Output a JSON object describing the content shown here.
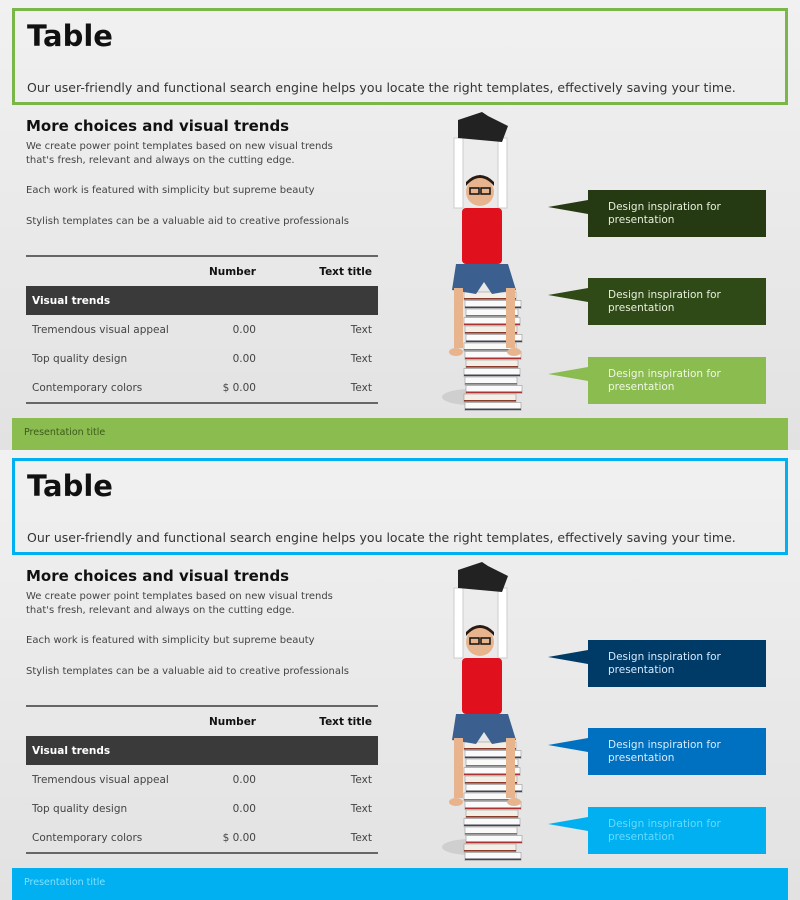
{
  "slides": [
    {
      "theme": "green",
      "colors": {
        "accent": "#8bbc4f",
        "border": "#7ab648",
        "footer_text": "#3d5a1c",
        "callouts": [
          "#253a12",
          "#2f4a17",
          "#8bbc4f"
        ],
        "callout_text": [
          "#e8f0dc",
          "#e8f0dc",
          "#f0f7e6"
        ]
      },
      "title": "Table",
      "subtitle": "Our user-friendly and functional search engine helps you locate the right templates, effectively saving your time.",
      "heading": "More choices and visual trends",
      "paragraphs": [
        "We create power point templates based on new visual trends that's fresh, relevant and always on the cutting edge.",
        "Each work is featured with simplicity but supreme beauty",
        "Stylish templates can be a valuable aid to creative professionals"
      ],
      "table": {
        "headers": [
          "",
          "Number",
          "Text title"
        ],
        "group": "Visual trends",
        "rows": [
          [
            "Tremendous visual appeal",
            "0.00",
            "Text"
          ],
          [
            "Top quality design",
            "0.00",
            "Text"
          ],
          [
            "Contemporary colors",
            "$ 0.00",
            "Text"
          ]
        ]
      },
      "callouts": [
        "Design inspiration for presentation",
        "Design inspiration for presentation",
        "Design inspiration for presentation"
      ],
      "footer": "Presentation title"
    },
    {
      "theme": "blue",
      "colors": {
        "accent": "#00b0f0",
        "border": "#00b0f0",
        "footer_text": "#7fe0ff",
        "callouts": [
          "#003a66",
          "#0070c0",
          "#00b0f0"
        ],
        "callout_text": [
          "#d6ecff",
          "#d6ecff",
          "#66d9ff"
        ]
      },
      "title": "Table",
      "subtitle": "Our user-friendly and functional search engine helps you locate the right templates, effectively saving your time.",
      "heading": "More choices and visual trends",
      "paragraphs": [
        "We create power point templates based on new visual trends that's fresh, relevant and always on the cutting edge.",
        "Each work is featured with simplicity but supreme beauty",
        "Stylish templates can be a valuable aid to creative professionals"
      ],
      "table": {
        "headers": [
          "",
          "Number",
          "Text title"
        ],
        "group": "Visual trends",
        "rows": [
          [
            "Tremendous visual appeal",
            "0.00",
            "Text"
          ],
          [
            "Top quality design",
            "0.00",
            "Text"
          ],
          [
            "Contemporary colors",
            "$ 0.00",
            "Text"
          ]
        ]
      },
      "callouts": [
        "Design inspiration for presentation",
        "Design inspiration for presentation",
        "Design inspiration for presentation"
      ],
      "footer": "Presentation title"
    }
  ]
}
